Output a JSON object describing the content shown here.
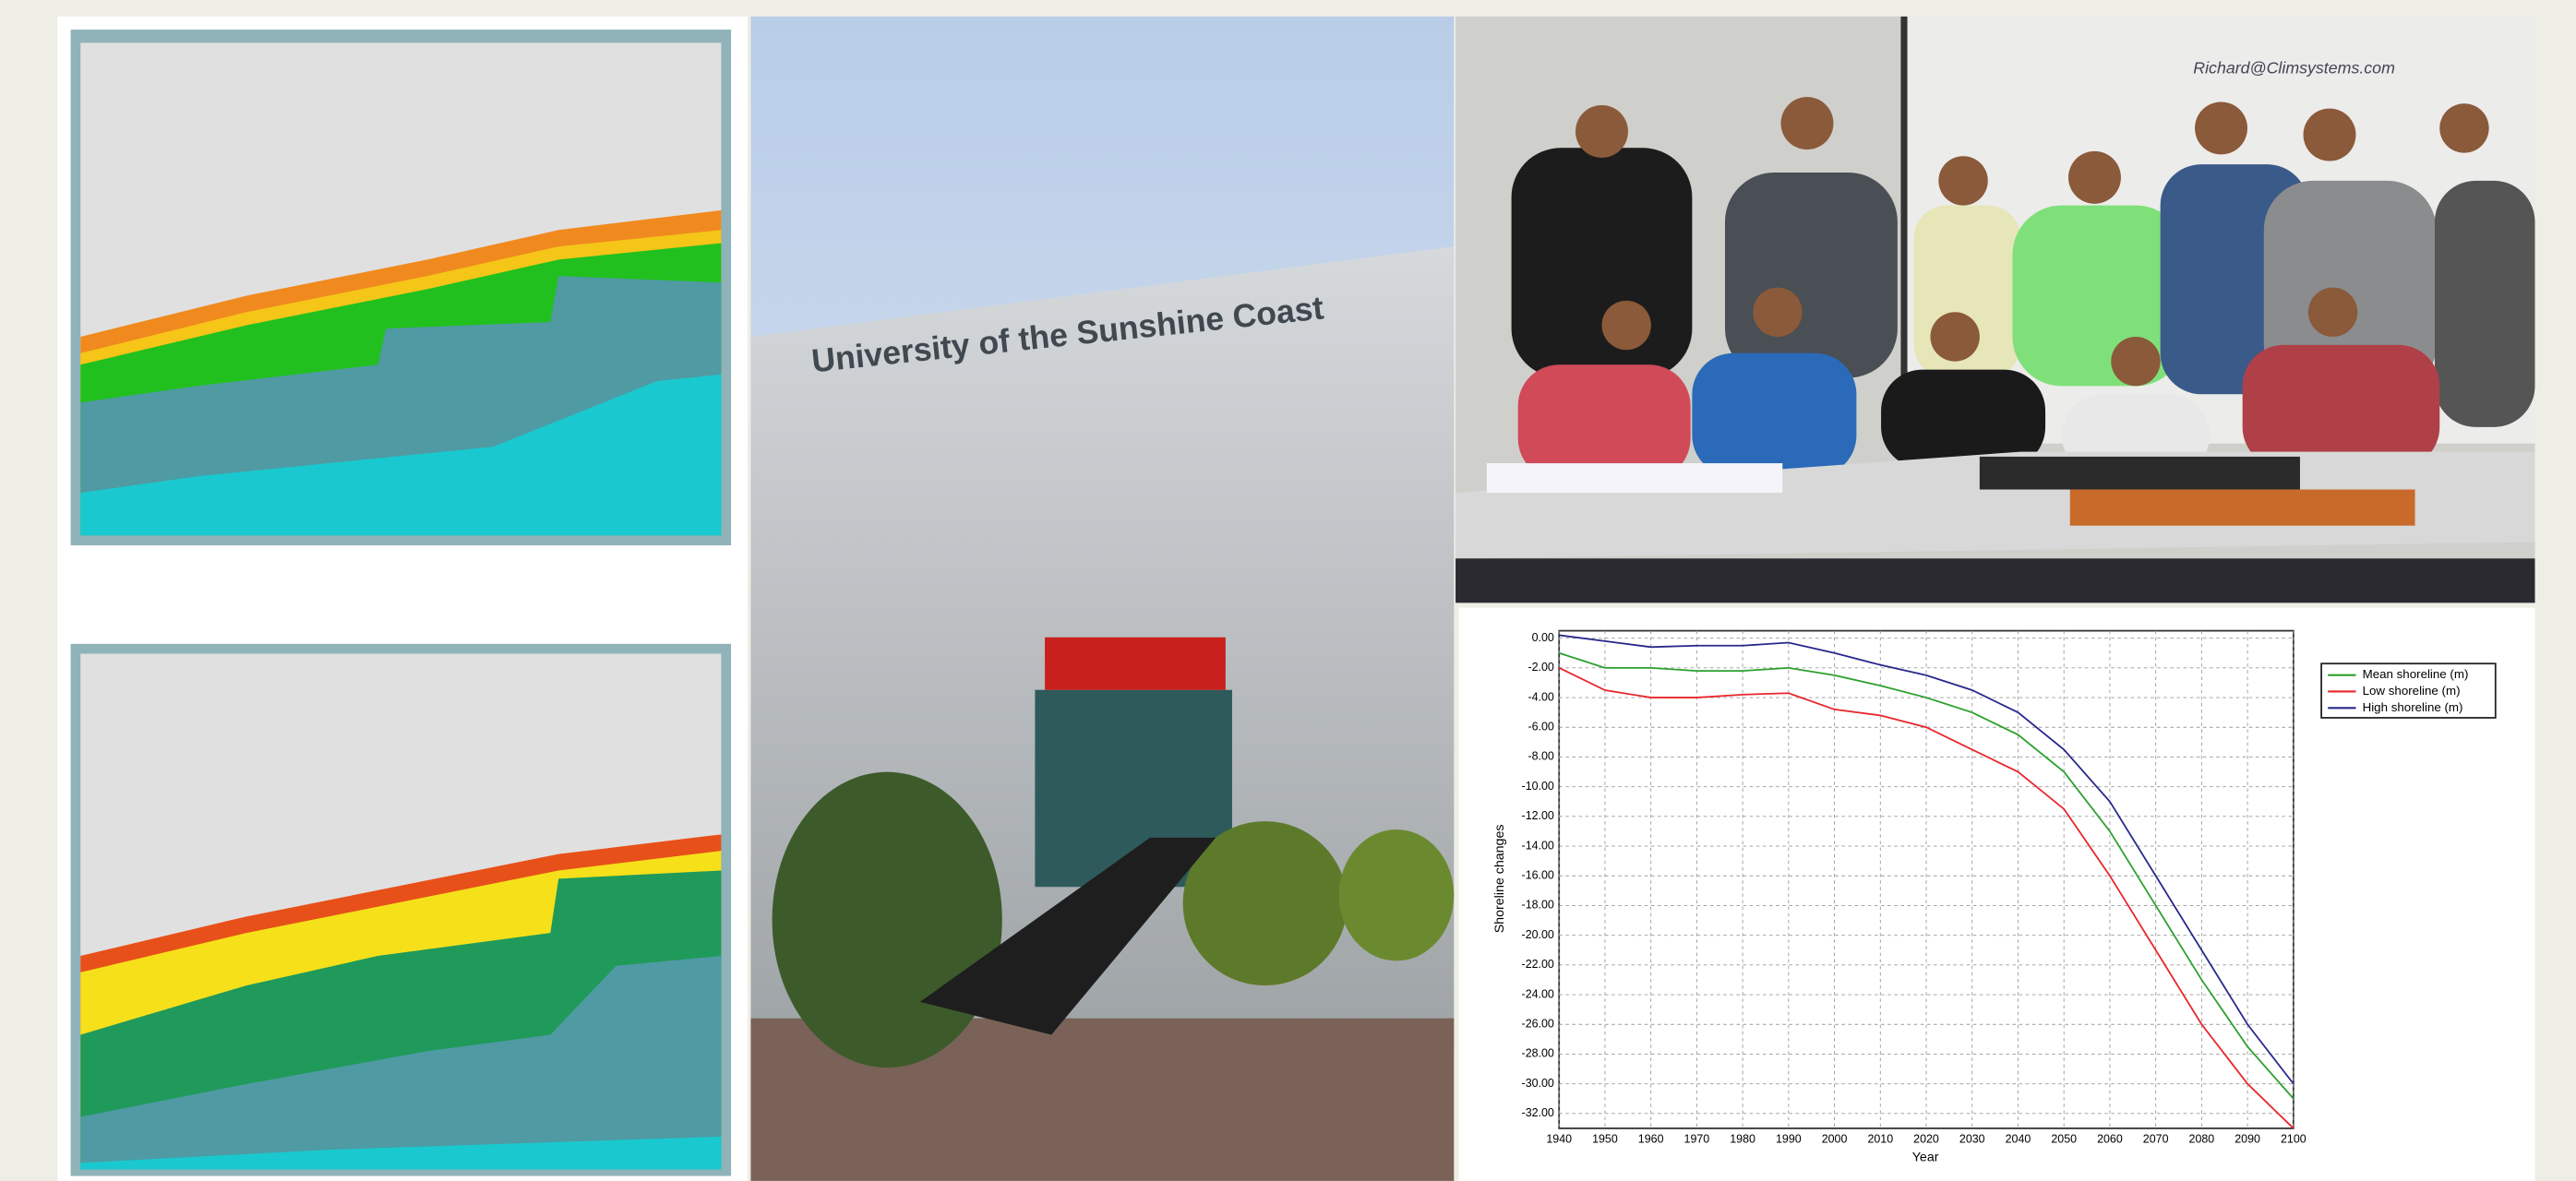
{
  "photo_campus": {
    "sign": "University of the Sunshine Coast"
  },
  "photo_group": {
    "whiteboard_text": "Richard@Climsystems.com"
  },
  "chart_data": {
    "type": "line",
    "y_label": "Shoreline changes",
    "x_label": "Year",
    "x": [
      1940,
      1950,
      1960,
      1970,
      1980,
      1990,
      2000,
      2010,
      2020,
      2030,
      2040,
      2050,
      2060,
      2070,
      2080,
      2090,
      2100
    ],
    "series": [
      {
        "name": "Mean shoreline (m)",
        "color": "#2ca02c",
        "values": [
          -1,
          -2,
          -2,
          -2.2,
          -2.2,
          -2,
          -2.5,
          -3.2,
          -4,
          -5,
          -6.5,
          -9,
          -13,
          -18,
          -23,
          -27.5,
          -31
        ]
      },
      {
        "name": "Low shoreline (m)",
        "color": "#e8262b",
        "values": [
          -2,
          -3.5,
          -4,
          -4,
          -3.8,
          -3.7,
          -4.8,
          -5.2,
          -6,
          -7.5,
          -9,
          -11.5,
          -16,
          -21,
          -26,
          -30,
          -33
        ]
      },
      {
        "name": "High shoreline (m)",
        "color": "#28288c",
        "values": [
          0.2,
          -0.2,
          -0.6,
          -0.5,
          -0.5,
          -0.3,
          -1,
          -1.8,
          -2.5,
          -3.5,
          -5,
          -7.5,
          -11,
          -16,
          -21,
          -26,
          -30
        ]
      }
    ],
    "xlim": [
      1940,
      2100
    ],
    "ylim": [
      -33,
      0.5
    ],
    "xticks": [
      1940,
      1950,
      1960,
      1970,
      1980,
      1990,
      2000,
      2010,
      2020,
      2030,
      2040,
      2050,
      2060,
      2070,
      2080,
      2090,
      2100
    ],
    "yticks": [
      {
        "value": 0,
        "label": "0.00"
      },
      {
        "value": -2,
        "label": "-2.00"
      },
      {
        "value": -4,
        "label": "-4.00"
      },
      {
        "value": -6,
        "label": "-6.00"
      },
      {
        "value": -8,
        "label": "-8.00"
      },
      {
        "value": -10,
        "label": "-10.00"
      },
      {
        "value": -12,
        "label": "-12.00"
      },
      {
        "value": -14,
        "label": "-14.00"
      },
      {
        "value": -16,
        "label": "-16.00"
      },
      {
        "value": -18,
        "label": "-18.00"
      },
      {
        "value": -20,
        "label": "-20.00"
      },
      {
        "value": -22,
        "label": "-22.00"
      },
      {
        "value": -24,
        "label": "-24.00"
      },
      {
        "value": -26,
        "label": "-26.00"
      },
      {
        "value": -28,
        "label": "-28.00"
      },
      {
        "value": -30,
        "label": "-30.00"
      },
      {
        "value": -32,
        "label": "-32.00"
      }
    ],
    "grid": true,
    "legend": "top-right"
  }
}
